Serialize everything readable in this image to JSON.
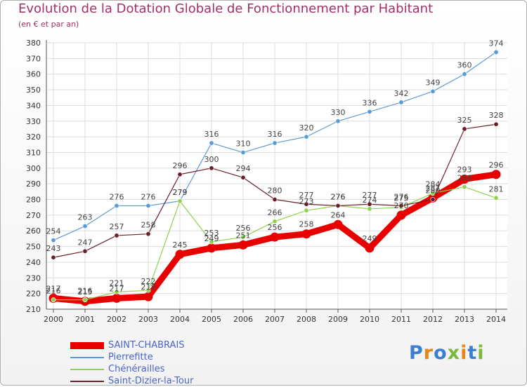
{
  "title": "Evolution de la Dotation Globale de Fonctionnement par Habitant",
  "subtitle": "(en € et par an)",
  "logo": {
    "text": "Proxiti",
    "letter_colors": [
      "#3a7fd0",
      "#e8861a",
      "#3a7fd0",
      "#7ab83c",
      "#e8861a",
      "#3a7fd0",
      "#7ab83c"
    ]
  },
  "chart_data": {
    "type": "line",
    "x": [
      "2000",
      "2001",
      "2002",
      "2003",
      "2004",
      "2005",
      "2006",
      "2007",
      "2008",
      "2009",
      "2010",
      "2011",
      "2012",
      "2013",
      "2014"
    ],
    "ylim": [
      210,
      380
    ],
    "yticks": [
      210,
      220,
      230,
      240,
      250,
      260,
      270,
      280,
      290,
      300,
      310,
      320,
      330,
      340,
      350,
      360,
      370,
      380
    ],
    "grid": true,
    "legend_position": "bottom-left",
    "series": [
      {
        "name": "SAINT-CHABRAIS",
        "color": "#e80000",
        "values": [
          217,
          215,
          217,
          218,
          245,
          249,
          251,
          256,
          258,
          264,
          249,
          270,
          281,
          293,
          296
        ]
      },
      {
        "name": "Pierrefitte",
        "color": "#5b9bd5",
        "values": [
          254,
          263,
          276,
          276,
          279,
          316,
          310,
          316,
          320,
          330,
          336,
          342,
          349,
          360,
          374
        ]
      },
      {
        "name": "Chénérailles",
        "color": "#8fd14f",
        "values": [
          216,
          216,
          221,
          222,
          279,
          253,
          256,
          266,
          273,
          276,
          274,
          275,
          284,
          288,
          281
        ]
      },
      {
        "name": "Saint-Dizier-la-Tour",
        "color": "#6b1f2a",
        "values": [
          243,
          247,
          257,
          258,
          296,
          300,
          294,
          280,
          277,
          276,
          277,
          276,
          280,
          325,
          328
        ]
      }
    ]
  }
}
